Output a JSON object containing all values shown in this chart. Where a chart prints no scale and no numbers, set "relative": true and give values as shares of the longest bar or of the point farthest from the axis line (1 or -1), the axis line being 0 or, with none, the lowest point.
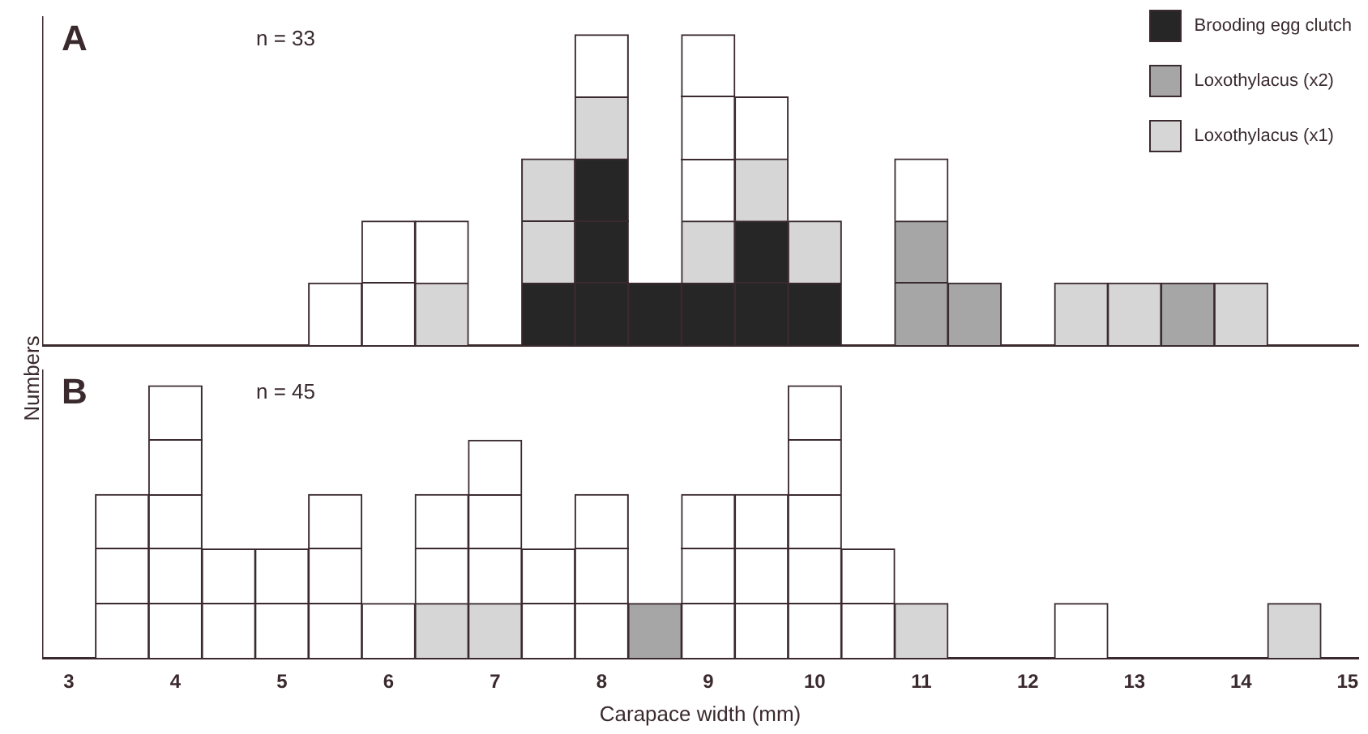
{
  "chart_data": [
    {
      "type": "bar",
      "title": "A",
      "ylabel": "Numbers",
      "annotations": [
        "n = 33"
      ],
      "x": [
        5.5,
        6,
        6.5,
        7.5,
        8,
        8.5,
        9,
        9.5,
        10,
        11,
        11.5,
        12.5,
        13,
        13.5,
        14
      ],
      "stacked": true,
      "relative": true,
      "series": [
        {
          "name": "Brooding egg clutch",
          "color": "#262626",
          "values": [
            null,
            null,
            null,
            0.2,
            0.6,
            0.2,
            0.2,
            0.4,
            0.2,
            null,
            null,
            null,
            null,
            null,
            null
          ]
        },
        {
          "name": "Loxothylacus (x2)",
          "color": "#a6a6a6",
          "values": [
            null,
            null,
            null,
            null,
            null,
            null,
            null,
            null,
            null,
            0.4,
            0.2,
            null,
            null,
            0.2,
            null
          ]
        },
        {
          "name": "Loxothylacus (x1)",
          "color": "#d6d6d6",
          "values": [
            null,
            null,
            0.2,
            0.4,
            0.2,
            null,
            0.2,
            0.2,
            0.2,
            null,
            null,
            0.2,
            0.2,
            null,
            0.2
          ]
        },
        {
          "color": "#ffffff",
          "values": [
            0.2,
            0.4,
            0.2,
            null,
            0.2,
            null,
            0.6,
            0.2,
            null,
            0.2,
            null,
            null,
            null,
            null,
            null
          ]
        }
      ],
      "xlim": [
        2.75,
        15.1
      ],
      "xticks": [
        3,
        4,
        5,
        6,
        7,
        8,
        9,
        10,
        11,
        12,
        13,
        14,
        15
      ],
      "legend": "top right",
      "tick_labels": false
    },
    {
      "type": "bar",
      "title": "B",
      "xlabel": "Carapace width (mm)",
      "annotations": [
        "n = 45"
      ],
      "x": [
        3.5,
        4,
        4.5,
        5,
        5.5,
        6,
        6.5,
        7,
        7.5,
        8,
        8.5,
        9,
        9.5,
        10,
        10.5,
        11,
        11.5,
        12,
        12.5,
        13,
        13.5,
        14,
        14.5
      ],
      "stacked": true,
      "relative": true,
      "series": [
        {
          "color": "#a6a6a6",
          "values": [
            null,
            null,
            null,
            null,
            null,
            null,
            null,
            null,
            null,
            null,
            0.2,
            null,
            null,
            null,
            null,
            null,
            null,
            null,
            null,
            null,
            null,
            null,
            null
          ]
        },
        {
          "color": "#d6d6d6",
          "values": [
            null,
            null,
            null,
            null,
            null,
            null,
            0.2,
            0.2,
            null,
            null,
            null,
            null,
            null,
            null,
            null,
            0.2,
            null,
            null,
            null,
            null,
            null,
            null,
            0.2
          ]
        },
        {
          "color": "#ffffff",
          "values": [
            0.6,
            1,
            0.4,
            0.4,
            0.6,
            0.2,
            0.4,
            0.6,
            0.4,
            0.6,
            null,
            0.6,
            0.6,
            1,
            0.4,
            null,
            null,
            null,
            0.2,
            null,
            null,
            null,
            null
          ]
        }
      ],
      "xlim": [
        2.75,
        15.1
      ],
      "xticks": [
        3,
        4,
        5,
        6,
        7,
        8,
        9,
        10,
        11,
        12,
        13,
        14,
        15
      ],
      "tick_labels": "x"
    }
  ]
}
